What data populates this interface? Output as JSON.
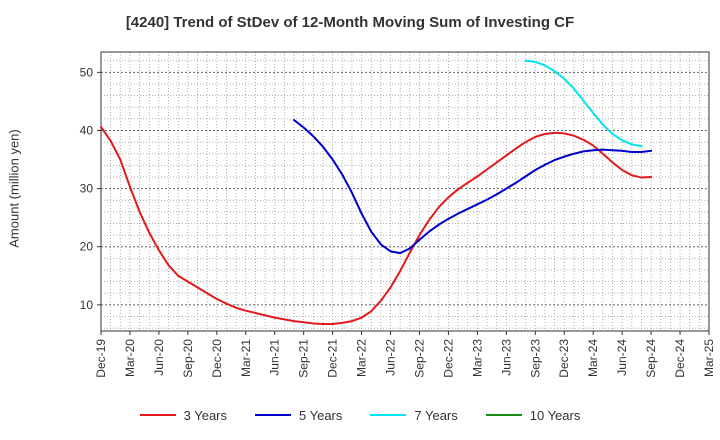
{
  "chart_data": {
    "type": "line",
    "title": "[4240]  Trend of StDev of 12-Month Moving Sum of Investing CF",
    "ylabel": "Amount (million yen)",
    "xlabel": "",
    "ylim": [
      5.5,
      53.5
    ],
    "yticks": [
      10,
      20,
      30,
      40,
      50
    ],
    "xlim": [
      "2019-12",
      "2025-03"
    ],
    "xtick_labels": [
      "Dec-19",
      "Mar-20",
      "Jun-20",
      "Sep-20",
      "Dec-20",
      "Mar-21",
      "Jun-21",
      "Sep-21",
      "Dec-21",
      "Mar-22",
      "Jun-22",
      "Sep-22",
      "Dec-22",
      "Mar-23",
      "Jun-23",
      "Sep-23",
      "Dec-23",
      "Mar-24",
      "Jun-24",
      "Sep-24",
      "Dec-24",
      "Mar-25"
    ],
    "grid": true,
    "legend_position": "bottom",
    "series": [
      {
        "name": "3 Years",
        "color": "#e31a1c",
        "points": [
          [
            "2019-12",
            40.6
          ],
          [
            "2020-01",
            38.2
          ],
          [
            "2020-02",
            35.0
          ],
          [
            "2020-03",
            30.3
          ],
          [
            "2020-04",
            26.0
          ],
          [
            "2020-05",
            22.4
          ],
          [
            "2020-06",
            19.4
          ],
          [
            "2020-07",
            16.8
          ],
          [
            "2020-08",
            15.0
          ],
          [
            "2020-09",
            14.0
          ],
          [
            "2020-10",
            13.0
          ],
          [
            "2020-11",
            12.0
          ],
          [
            "2020-12",
            11.0
          ],
          [
            "2021-01",
            10.2
          ],
          [
            "2021-02",
            9.5
          ],
          [
            "2021-03",
            9.0
          ],
          [
            "2021-04",
            8.6
          ],
          [
            "2021-05",
            8.2
          ],
          [
            "2021-06",
            7.8
          ],
          [
            "2021-07",
            7.5
          ],
          [
            "2021-08",
            7.2
          ],
          [
            "2021-09",
            7.0
          ],
          [
            "2021-10",
            6.8
          ],
          [
            "2021-11",
            6.7
          ],
          [
            "2021-12",
            6.7
          ],
          [
            "2022-01",
            6.9
          ],
          [
            "2022-02",
            7.2
          ],
          [
            "2022-03",
            7.8
          ],
          [
            "2022-04",
            8.9
          ],
          [
            "2022-05",
            10.7
          ],
          [
            "2022-06",
            13.0
          ],
          [
            "2022-07",
            15.8
          ],
          [
            "2022-08",
            19.0
          ],
          [
            "2022-09",
            22.0
          ],
          [
            "2022-10",
            24.6
          ],
          [
            "2022-11",
            26.8
          ],
          [
            "2022-12",
            28.5
          ],
          [
            "2023-01",
            29.9
          ],
          [
            "2023-02",
            31.0
          ],
          [
            "2023-03",
            32.1
          ],
          [
            "2023-04",
            33.3
          ],
          [
            "2023-05",
            34.5
          ],
          [
            "2023-06",
            35.7
          ],
          [
            "2023-07",
            36.9
          ],
          [
            "2023-08",
            38.0
          ],
          [
            "2023-09",
            38.9
          ],
          [
            "2023-10",
            39.4
          ],
          [
            "2023-11",
            39.6
          ],
          [
            "2023-12",
            39.5
          ],
          [
            "2024-01",
            39.1
          ],
          [
            "2024-02",
            38.4
          ],
          [
            "2024-03",
            37.4
          ],
          [
            "2024-04",
            36.0
          ],
          [
            "2024-05",
            34.5
          ],
          [
            "2024-06",
            33.2
          ],
          [
            "2024-07",
            32.3
          ],
          [
            "2024-08",
            31.9
          ],
          [
            "2024-09",
            32.0
          ]
        ]
      },
      {
        "name": "5 Years",
        "color": "#0000cc",
        "points": [
          [
            "2021-08",
            41.8
          ],
          [
            "2021-09",
            40.5
          ],
          [
            "2021-10",
            39.0
          ],
          [
            "2021-11",
            37.2
          ],
          [
            "2021-12",
            35.0
          ],
          [
            "2022-01",
            32.4
          ],
          [
            "2022-02",
            29.3
          ],
          [
            "2022-03",
            25.7
          ],
          [
            "2022-04",
            22.6
          ],
          [
            "2022-05",
            20.4
          ],
          [
            "2022-06",
            19.2
          ],
          [
            "2022-07",
            18.9
          ],
          [
            "2022-08",
            19.7
          ],
          [
            "2022-09",
            21.2
          ],
          [
            "2022-10",
            22.6
          ],
          [
            "2022-11",
            23.8
          ],
          [
            "2022-12",
            24.8
          ],
          [
            "2023-01",
            25.7
          ],
          [
            "2023-02",
            26.5
          ],
          [
            "2023-03",
            27.3
          ],
          [
            "2023-04",
            28.1
          ],
          [
            "2023-05",
            29.0
          ],
          [
            "2023-06",
            30.0
          ],
          [
            "2023-07",
            31.0
          ],
          [
            "2023-08",
            32.1
          ],
          [
            "2023-09",
            33.2
          ],
          [
            "2023-10",
            34.1
          ],
          [
            "2023-11",
            34.9
          ],
          [
            "2023-12",
            35.5
          ],
          [
            "2024-01",
            36.0
          ],
          [
            "2024-02",
            36.4
          ],
          [
            "2024-03",
            36.6
          ],
          [
            "2024-04",
            36.7
          ],
          [
            "2024-05",
            36.6
          ],
          [
            "2024-06",
            36.5
          ],
          [
            "2024-07",
            36.3
          ],
          [
            "2024-08",
            36.3
          ],
          [
            "2024-09",
            36.5
          ]
        ]
      },
      {
        "name": "7 Years",
        "color": "#00e5ee",
        "points": [
          [
            "2023-08",
            52.0
          ],
          [
            "2023-09",
            51.8
          ],
          [
            "2023-10",
            51.2
          ],
          [
            "2023-11",
            50.2
          ],
          [
            "2023-12",
            48.9
          ],
          [
            "2024-01",
            47.2
          ],
          [
            "2024-02",
            45.1
          ],
          [
            "2024-03",
            43.0
          ],
          [
            "2024-04",
            41.0
          ],
          [
            "2024-05",
            39.4
          ],
          [
            "2024-06",
            38.3
          ],
          [
            "2024-07",
            37.6
          ],
          [
            "2024-08",
            37.3
          ]
        ]
      },
      {
        "name": "10 Years",
        "color": "#1a8c1a",
        "points": []
      }
    ]
  }
}
